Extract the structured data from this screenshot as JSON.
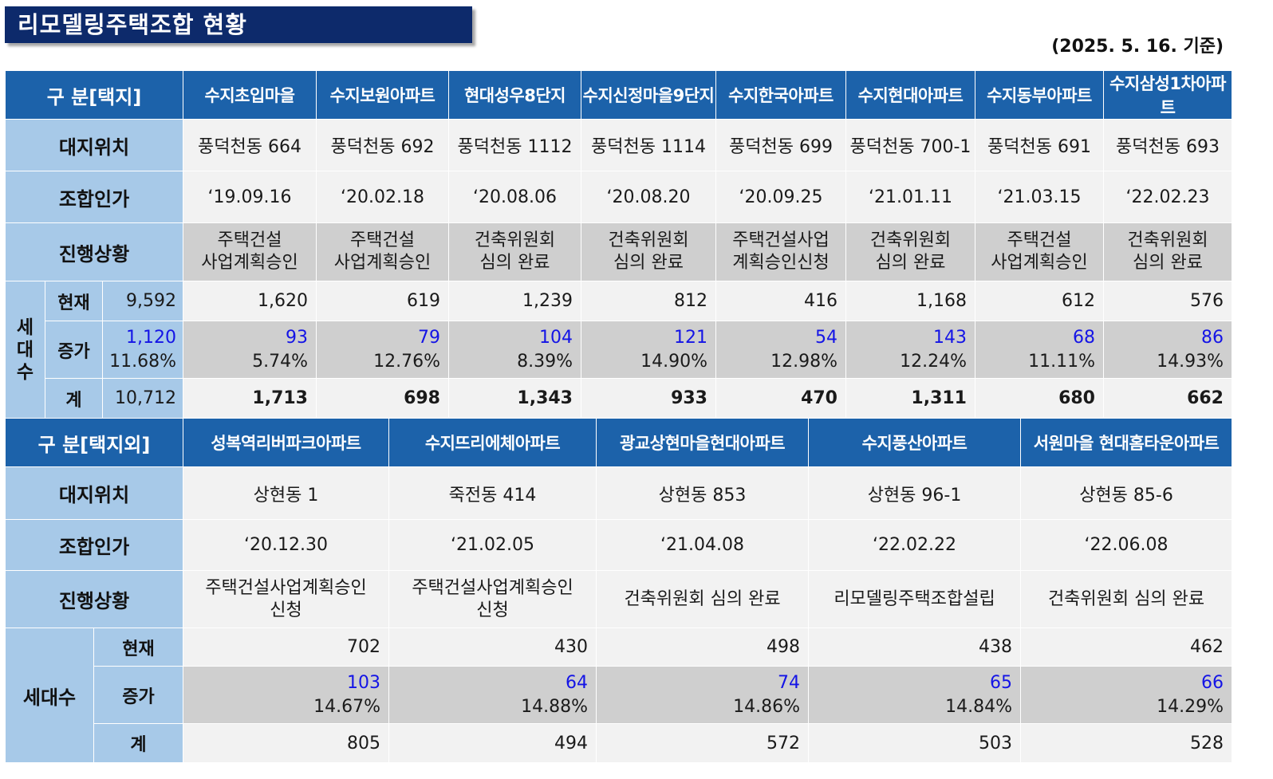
{
  "title": "리모델링주택조합 현황",
  "date": "(2025. 5. 16. 기준)",
  "t1": {
    "header_label": "구 분[택지]",
    "row_labels": {
      "location": "대지위치",
      "approval": "조합인가",
      "status": "진행상황",
      "households": "세대수",
      "current": "현재",
      "increase": "증가",
      "total": "계"
    },
    "summary": {
      "current": "9,592",
      "increase": "1,120",
      "increase_pct": "11.68%",
      "total": "10,712"
    },
    "complexes": [
      {
        "name": "수지초입마을",
        "location": "풍덕천동 664",
        "approval": "‘19.09.16",
        "status1": "주택건설",
        "status2": "사업계획승인",
        "current": "1,620",
        "increase": "93",
        "pct": "5.74%",
        "total": "1,713"
      },
      {
        "name": "수지보원아파트",
        "location": "풍덕천동 692",
        "approval": "‘20.02.18",
        "status1": "주택건설",
        "status2": "사업계획승인",
        "current": "619",
        "increase": "79",
        "pct": "12.76%",
        "total": "698"
      },
      {
        "name": "현대성우8단지",
        "location": "풍덕천동 1112",
        "approval": "‘20.08.06",
        "status1": "건축위원회",
        "status2": "심의 완료",
        "current": "1,239",
        "increase": "104",
        "pct": "8.39%",
        "total": "1,343"
      },
      {
        "name": "수지신정마을9단지",
        "location": "풍덕천동 1114",
        "approval": "‘20.08.20",
        "status1": "건축위원회",
        "status2": "심의 완료",
        "current": "812",
        "increase": "121",
        "pct": "14.90%",
        "total": "933"
      },
      {
        "name": "수지한국아파트",
        "location": "풍덕천동 699",
        "approval": "‘20.09.25",
        "status1": "주택건설사업",
        "status2": "계획승인신청",
        "current": "416",
        "increase": "54",
        "pct": "12.98%",
        "total": "470"
      },
      {
        "name": "수지현대아파트",
        "location": "풍덕천동 700-1",
        "approval": "‘21.01.11",
        "status1": "건축위원회",
        "status2": "심의 완료",
        "current": "1,168",
        "increase": "143",
        "pct": "12.24%",
        "total": "1,311"
      },
      {
        "name": "수지동부아파트",
        "location": "풍덕천동 691",
        "approval": "‘21.03.15",
        "status1": "주택건설",
        "status2": "사업계획승인",
        "current": "612",
        "increase": "68",
        "pct": "11.11%",
        "total": "680"
      },
      {
        "name": "수지삼성1차아파트",
        "location": "풍덕천동 693",
        "approval": "‘22.02.23",
        "status1": "건축위원회",
        "status2": "심의 완료",
        "current": "576",
        "increase": "86",
        "pct": "14.93%",
        "total": "662"
      }
    ]
  },
  "t2": {
    "header_label": "구 분[택지외]",
    "row_labels": {
      "location": "대지위치",
      "approval": "조합인가",
      "status": "진행상황",
      "households": "세대수",
      "current": "현재",
      "increase": "증가",
      "total": "계"
    },
    "complexes": [
      {
        "name": "성복역리버파크아파트",
        "location": "상현동 1",
        "approval": "‘20.12.30",
        "status1": "주택건설사업계획승인",
        "status2": "신청",
        "current": "702",
        "increase": "103",
        "pct": "14.67%",
        "total": "805"
      },
      {
        "name": "수지뜨리에체아파트",
        "location": "죽전동 414",
        "approval": "‘21.02.05",
        "status1": "주택건설사업계획승인",
        "status2": "신청",
        "current": "430",
        "increase": "64",
        "pct": "14.88%",
        "total": "494"
      },
      {
        "name": "광교상현마을현대아파트",
        "location": "상현동 853",
        "approval": "‘21.04.08",
        "status1": "건축위원회 심의 완료",
        "status2": "",
        "current": "498",
        "increase": "74",
        "pct": "14.86%",
        "total": "572"
      },
      {
        "name": "수지풍산아파트",
        "location": "상현동 96-1",
        "approval": "‘22.02.22",
        "status1": "리모델링주택조합설립",
        "status2": "",
        "current": "438",
        "increase": "65",
        "pct": "14.84%",
        "total": "503"
      },
      {
        "name": "서원마을 현대홈타운아파트",
        "location": "상현동 85-6",
        "approval": "‘22.06.08",
        "status1": "건축위원회 심의 완료",
        "status2": "",
        "current": "462",
        "increase": "66",
        "pct": "14.29%",
        "total": "528"
      }
    ]
  },
  "colors": {
    "title_bg": "#0d2a6b",
    "header_bg": "#1c62aa",
    "label_bg": "#a7c9e8",
    "cell_bg": "#f2f2f2",
    "gray_bg": "#cfcfcf",
    "increase_text": "#1414e6"
  }
}
